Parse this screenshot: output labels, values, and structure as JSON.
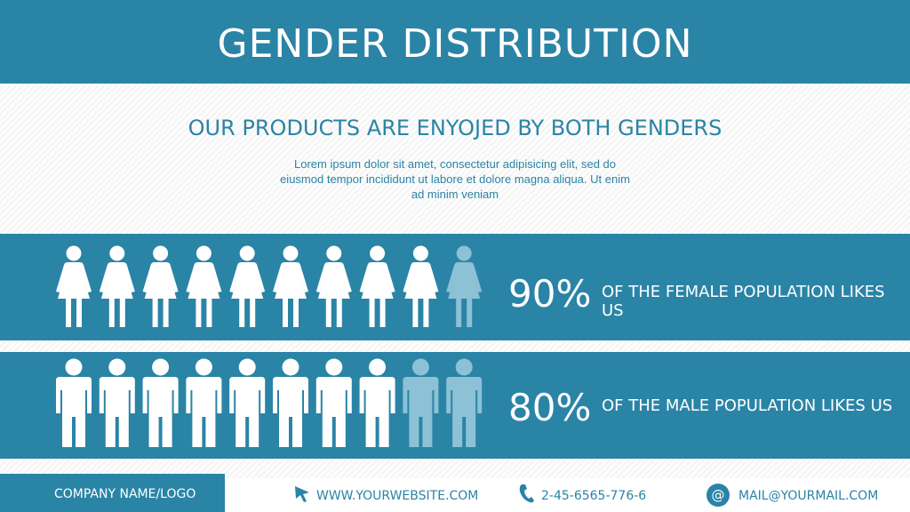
{
  "header": {
    "title": "GENDER DISTRIBUTION"
  },
  "intro": {
    "heading": "OUR PRODUCTS ARE ENYOJED BY BOTH GENDERS",
    "text": "Lorem ipsum dolor sit amet, consectetur adipisicing elit, sed do eiusmod tempor incididunt ut labore et dolore magna aliqua. Ut enim ad minim veniam"
  },
  "rows": [
    {
      "icon": "female",
      "value": 90,
      "value_label": "90%",
      "text": "OF THE FEMALE POPULATION LIKES US"
    },
    {
      "icon": "male",
      "value": 80,
      "value_label": "80%",
      "text": "OF THE MALE POPULATION LIKES US"
    }
  ],
  "footer": {
    "company": "COMPANY NAME/LOGO",
    "website": "WWW.YOURWEBSITE.COM",
    "phone": "2-45-6565-776-6",
    "email": "MAIL@YOURMAIL.COM"
  }
}
